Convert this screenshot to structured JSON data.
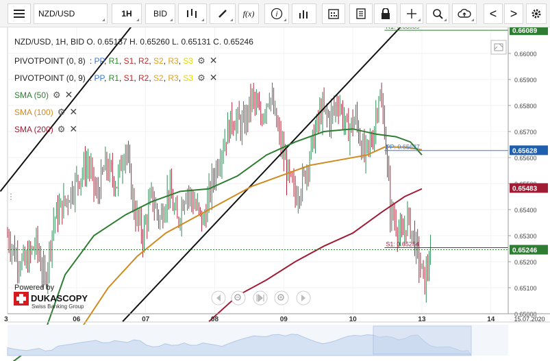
{
  "toolbar": {
    "menu_icon": "menu-icon",
    "symbol": "NZD/USD",
    "timeframe": "1H",
    "price_side": "BID",
    "chart_type_icon": "candlestick-icon",
    "draw_icon": "pencil-icon",
    "fx_label": "f(x)",
    "info_label": "i",
    "volume_icon": "bar-chart-icon",
    "calendar_icon": "calendar-icon",
    "news_icon": "document-icon",
    "lock_icon": "lock-icon",
    "crosshair_icon": "crosshair-icon",
    "zoom_icon": "zoom-icon",
    "cloud_icon": "cloud-upload-icon",
    "prev_label": "<",
    "next_label": ">",
    "settings_icon": "gear-icon"
  },
  "legend": {
    "ohlc": "NZD/USD, 1H, BID   O. 0.65137 H. 0.65260 L. 0.65131 C. 0.65246",
    "pivot1_name": "PIVOTPOINT (0, 8)",
    "pivot2_name": "PIVOTPOINT (0, 9)",
    "pivot_levels": [
      {
        "label": "PP",
        "color": "#3a78d8"
      },
      {
        "label": "R1",
        "color": "#2e8b2e"
      },
      {
        "label": "S1",
        "color": "#c62828"
      },
      {
        "label": "R2",
        "color": "#c62828"
      },
      {
        "label": "S2",
        "color": "#e0a020"
      },
      {
        "label": "R3",
        "color": "#e0a020"
      },
      {
        "label": "S3",
        "color": "#e6d800"
      }
    ],
    "sma50": "SMA (50)",
    "sma100": "SMA (100)",
    "sma200": "SMA (200)",
    "sma50_color": "#2e7d32",
    "sma100_color": "#d08a1e",
    "sma200_color": "#a01c34"
  },
  "branding": {
    "powered": "Powered by",
    "name": "DUKASCOPY",
    "sub": "Swiss Banking Group"
  },
  "chart_data": {
    "type": "candlestick",
    "symbol": "NZD/USD",
    "timeframe": "1H",
    "ylim": [
      0.65,
      0.661
    ],
    "y_ticks": [
      "0.65000",
      "0.65100",
      "0.65200",
      "0.65300",
      "0.65400",
      "0.65500",
      "0.65600",
      "0.65700",
      "0.65800",
      "0.65900",
      "0.66000"
    ],
    "x_ticks": [
      "3",
      "06",
      "07",
      "08",
      "09",
      "10",
      "13",
      "14",
      "15",
      "15.07.2020"
    ],
    "price_tags": [
      {
        "label": "0.66089",
        "value": 0.66089,
        "color": "#2e7d32"
      },
      {
        "label": "0.65628",
        "value": 0.65628,
        "color": "#1e5fb0"
      },
      {
        "label": "0.65483",
        "value": 0.65483,
        "color": "#a01c34"
      },
      {
        "label": "0.65246",
        "value": 0.65246,
        "color": "#2e7d32"
      }
    ],
    "pivot_lines": [
      {
        "label": "R1: 0.66089",
        "value": 0.66089,
        "color": "#2e7d32"
      },
      {
        "label": "PP: 0.65627",
        "value": 0.65627,
        "color": "#3a78d8"
      },
      {
        "label": "S1: 0.65254",
        "value": 0.65254,
        "color": "#a01c34"
      }
    ],
    "last_close": 0.65246,
    "close_path": [
      {
        "x": 0,
        "y": 0.653
      },
      {
        "x": 6,
        "y": 0.6522
      },
      {
        "x": 12,
        "y": 0.6519
      },
      {
        "x": 20,
        "y": 0.6527
      },
      {
        "x": 26,
        "y": 0.6512
      },
      {
        "x": 32,
        "y": 0.6536
      },
      {
        "x": 40,
        "y": 0.6543
      },
      {
        "x": 48,
        "y": 0.6551
      },
      {
        "x": 56,
        "y": 0.6558
      },
      {
        "x": 62,
        "y": 0.6545
      },
      {
        "x": 68,
        "y": 0.6557
      },
      {
        "x": 76,
        "y": 0.655
      },
      {
        "x": 82,
        "y": 0.6565
      },
      {
        "x": 88,
        "y": 0.654
      },
      {
        "x": 94,
        "y": 0.653
      },
      {
        "x": 100,
        "y": 0.6545
      },
      {
        "x": 106,
        "y": 0.6536
      },
      {
        "x": 112,
        "y": 0.6548
      },
      {
        "x": 118,
        "y": 0.6535
      },
      {
        "x": 124,
        "y": 0.6548
      },
      {
        "x": 130,
        "y": 0.6542
      },
      {
        "x": 136,
        "y": 0.6535
      },
      {
        "x": 142,
        "y": 0.655
      },
      {
        "x": 148,
        "y": 0.6562
      },
      {
        "x": 156,
        "y": 0.6575
      },
      {
        "x": 164,
        "y": 0.6572
      },
      {
        "x": 170,
        "y": 0.6583
      },
      {
        "x": 176,
        "y": 0.6575
      },
      {
        "x": 182,
        "y": 0.6585
      },
      {
        "x": 188,
        "y": 0.657
      },
      {
        "x": 194,
        "y": 0.6555
      },
      {
        "x": 200,
        "y": 0.6545
      },
      {
        "x": 206,
        "y": 0.6552
      },
      {
        "x": 212,
        "y": 0.6566
      },
      {
        "x": 218,
        "y": 0.6578
      },
      {
        "x": 224,
        "y": 0.6575
      },
      {
        "x": 230,
        "y": 0.6582
      },
      {
        "x": 236,
        "y": 0.657
      },
      {
        "x": 242,
        "y": 0.6575
      },
      {
        "x": 248,
        "y": 0.656
      },
      {
        "x": 254,
        "y": 0.6568
      },
      {
        "x": 258,
        "y": 0.6585
      },
      {
        "x": 262,
        "y": 0.6572
      },
      {
        "x": 266,
        "y": 0.654
      },
      {
        "x": 270,
        "y": 0.6535
      },
      {
        "x": 274,
        "y": 0.6528
      },
      {
        "x": 278,
        "y": 0.6537
      },
      {
        "x": 282,
        "y": 0.653
      },
      {
        "x": 286,
        "y": 0.652
      },
      {
        "x": 290,
        "y": 0.6512
      },
      {
        "x": 294,
        "y": 0.65246
      }
    ],
    "sma50": [
      {
        "x": 0,
        "y": 0.648
      },
      {
        "x": 24,
        "y": 0.649
      },
      {
        "x": 40,
        "y": 0.6515
      },
      {
        "x": 60,
        "y": 0.653
      },
      {
        "x": 82,
        "y": 0.6538
      },
      {
        "x": 100,
        "y": 0.6543
      },
      {
        "x": 120,
        "y": 0.6547
      },
      {
        "x": 140,
        "y": 0.6548
      },
      {
        "x": 160,
        "y": 0.6553
      },
      {
        "x": 180,
        "y": 0.6561
      },
      {
        "x": 200,
        "y": 0.6566
      },
      {
        "x": 220,
        "y": 0.657
      },
      {
        "x": 240,
        "y": 0.6571
      },
      {
        "x": 256,
        "y": 0.6569
      },
      {
        "x": 270,
        "y": 0.6568
      },
      {
        "x": 280,
        "y": 0.6566
      },
      {
        "x": 288,
        "y": 0.6561
      }
    ],
    "sma100": [
      {
        "x": 52,
        "y": 0.6495
      },
      {
        "x": 70,
        "y": 0.651
      },
      {
        "x": 90,
        "y": 0.6522
      },
      {
        "x": 110,
        "y": 0.6531
      },
      {
        "x": 130,
        "y": 0.6537
      },
      {
        "x": 150,
        "y": 0.6543
      },
      {
        "x": 170,
        "y": 0.6549
      },
      {
        "x": 190,
        "y": 0.6553
      },
      {
        "x": 210,
        "y": 0.6557
      },
      {
        "x": 230,
        "y": 0.6559
      },
      {
        "x": 250,
        "y": 0.6561
      },
      {
        "x": 262,
        "y": 0.6564
      },
      {
        "x": 276,
        "y": 0.6564
      },
      {
        "x": 288,
        "y": 0.6563
      }
    ],
    "sma200": [
      {
        "x": 140,
        "y": 0.6497
      },
      {
        "x": 160,
        "y": 0.6507
      },
      {
        "x": 180,
        "y": 0.6513
      },
      {
        "x": 200,
        "y": 0.652
      },
      {
        "x": 220,
        "y": 0.6526
      },
      {
        "x": 240,
        "y": 0.6531
      },
      {
        "x": 260,
        "y": 0.6539
      },
      {
        "x": 276,
        "y": 0.6545
      },
      {
        "x": 288,
        "y": 0.6548
      }
    ],
    "trendlines": [
      {
        "x1": -5,
        "y1": 0.6547,
        "x2": 100,
        "y2": 0.662
      },
      {
        "x1": 80,
        "y1": 0.6497,
        "x2": 290,
        "y2": 0.662
      }
    ]
  }
}
